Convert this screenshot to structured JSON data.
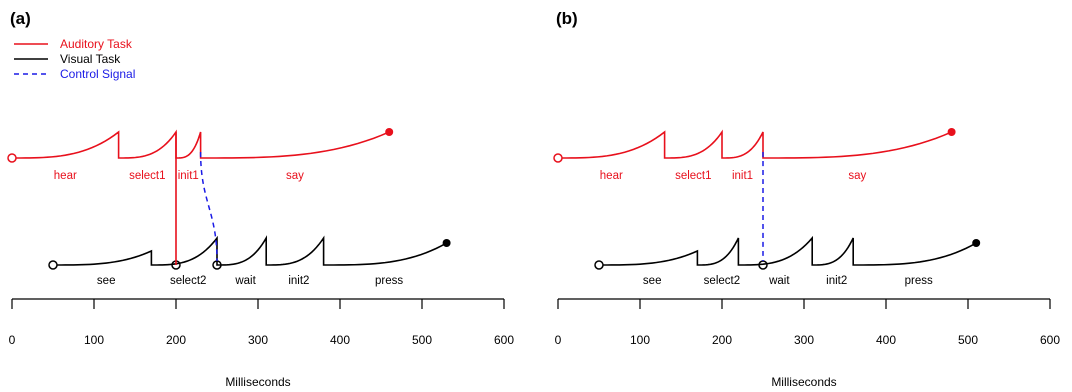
{
  "colors": {
    "auditory": "#e8101c",
    "visual": "#000000",
    "control": "#1a1ae6"
  },
  "legend": [
    {
      "label": "Auditory Task",
      "color": "#e8101c",
      "dash": false
    },
    {
      "label": "Visual Task",
      "color": "#000000",
      "dash": false
    },
    {
      "label": "Control Signal",
      "color": "#1a1ae6",
      "dash": true
    }
  ],
  "chart_data": [
    {
      "type": "line",
      "panel_label": "(a)",
      "xlabel": "Milliseconds",
      "xlim": [
        0,
        600
      ],
      "xticks": [
        0,
        100,
        200,
        300,
        400,
        500,
        600
      ],
      "auditory": {
        "segments": [
          {
            "label": "hear",
            "from": 0,
            "to": 130
          },
          {
            "label": "select1",
            "from": 130,
            "to": 200
          },
          {
            "label": "init1",
            "from": 200,
            "to": 230
          },
          {
            "label": "say",
            "from": 230,
            "to": 460
          }
        ],
        "start": 0,
        "end": 460
      },
      "visual": {
        "segments": [
          {
            "label": "see",
            "from": 50,
            "to": 170
          },
          {
            "label": "select2",
            "from": 170,
            "to": 250
          },
          {
            "label": "wait",
            "from": 250,
            "to": 310
          },
          {
            "label": "init2",
            "from": 310,
            "to": 380
          },
          {
            "label": "press",
            "from": 380,
            "to": 530
          }
        ],
        "start": 50,
        "end": 530,
        "markers": [
          200,
          250
        ]
      },
      "links": [
        {
          "type": "auditory",
          "x": 200
        },
        {
          "type": "control",
          "from": 230,
          "to": 250
        }
      ]
    },
    {
      "type": "line",
      "panel_label": "(b)",
      "xlabel": "Milliseconds",
      "xlim": [
        0,
        600
      ],
      "xticks": [
        0,
        100,
        200,
        300,
        400,
        500,
        600
      ],
      "auditory": {
        "segments": [
          {
            "label": "hear",
            "from": 0,
            "to": 130
          },
          {
            "label": "select1",
            "from": 130,
            "to": 200
          },
          {
            "label": "init1",
            "from": 200,
            "to": 250
          },
          {
            "label": "say",
            "from": 250,
            "to": 480
          }
        ],
        "start": 0,
        "end": 480
      },
      "visual": {
        "segments": [
          {
            "label": "see",
            "from": 50,
            "to": 170
          },
          {
            "label": "select2",
            "from": 170,
            "to": 220
          },
          {
            "label": "wait",
            "from": 220,
            "to": 310
          },
          {
            "label": "init2",
            "from": 310,
            "to": 360
          },
          {
            "label": "press",
            "from": 360,
            "to": 510
          }
        ],
        "start": 50,
        "end": 510,
        "markers": [
          250
        ]
      },
      "links": [
        {
          "type": "control",
          "from": 250,
          "to": 250
        }
      ]
    }
  ]
}
